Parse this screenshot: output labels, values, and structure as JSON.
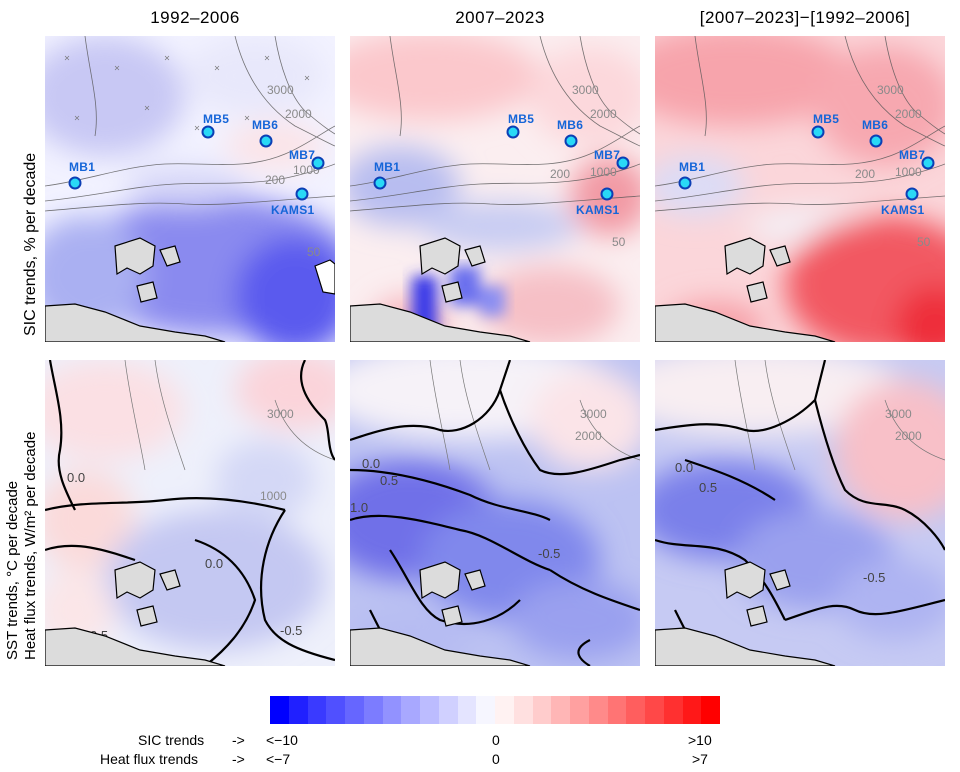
{
  "columns": [
    "1992–2006",
    "2007–2023",
    "[2007–2023]−[1992–2006]"
  ],
  "rows": [
    {
      "label_line1": "SIC trends, % per decade",
      "label_line2": ""
    },
    {
      "label_line1": "SST trends, °C per decade",
      "label_line2": "Heat flux trends, W/m² per decade"
    }
  ],
  "stations": [
    "MB1",
    "MB5",
    "MB6",
    "MB7",
    "KAMS1"
  ],
  "bathymetry_labels": [
    "3000",
    "2000",
    "1000",
    "200",
    "50"
  ],
  "contour_labels": [
    "0.0",
    "0.5",
    "1.0",
    "0.0",
    "-0.5"
  ],
  "colorbar": {
    "colors": [
      "#0000ff",
      "#2020ff",
      "#3a3aff",
      "#5050ff",
      "#6666ff",
      "#7c7cff",
      "#9292ff",
      "#a8a8ff",
      "#bcbcff",
      "#d0d0ff",
      "#e4e4ff",
      "#f6f6ff",
      "#fff2f2",
      "#ffe0e0",
      "#ffcccc",
      "#ffb6b6",
      "#ffa0a0",
      "#ff8a8a",
      "#ff7474",
      "#ff5e5e",
      "#ff4848",
      "#ff3030",
      "#ff1818",
      "#ff0000"
    ],
    "sic_label": "SIC trends",
    "heat_label": "Heat flux trends",
    "arrow": "->",
    "sic_min": "<−10",
    "sic_mid": "0",
    "sic_max": ">10",
    "heat_min": "<−7",
    "heat_mid": "0",
    "heat_max": ">7"
  }
}
